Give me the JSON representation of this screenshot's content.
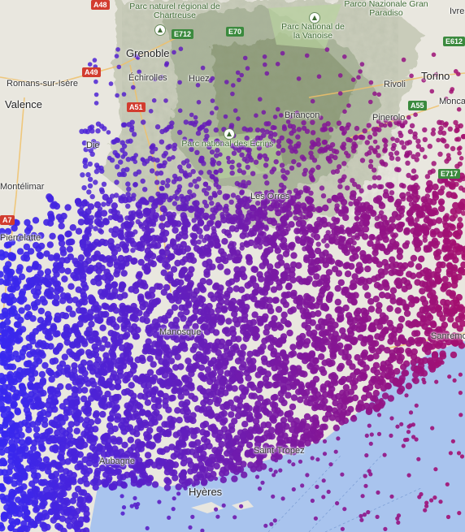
{
  "map": {
    "colors": {
      "blue": "#3b2ff0",
      "purple": "#7a1fb0",
      "magenta": "#a0147a",
      "sea": "#a9c4ee",
      "land": "#e8e6df",
      "mountain": "#6e7f58"
    },
    "places": [
      {
        "label": "Grenoble"
      },
      {
        "label": "Échirolles"
      },
      {
        "label": "Romans-sur-Isère"
      },
      {
        "label": "Valence"
      },
      {
        "label": "Die"
      },
      {
        "label": "Briançon"
      },
      {
        "label": "Torino"
      },
      {
        "label": "Rivoli"
      },
      {
        "label": "Pinerolo"
      },
      {
        "label": "Moncalieri"
      },
      {
        "label": "Ivrea"
      },
      {
        "label": "Les Orres"
      },
      {
        "label": "Hyères"
      },
      {
        "label": "Sanremo"
      },
      {
        "label": "Saint-Tropez"
      },
      {
        "label": "Huez"
      },
      {
        "label": "Montélimar"
      },
      {
        "label": "Pierrelatte"
      },
      {
        "label": "Manosque"
      },
      {
        "label": "Aubagne"
      }
    ],
    "parks": [
      {
        "label": "Parc naturel régional de Chartreuse"
      },
      {
        "label": "Parco Nazionale Gran Paradiso"
      },
      {
        "label": "Parc National de la Vanoise"
      },
      {
        "label": "Parc national des Écrins"
      }
    ],
    "roads": [
      "A48",
      "E712",
      "E70",
      "E612",
      "A49",
      "A51",
      "A55",
      "E717",
      "A7"
    ]
  }
}
